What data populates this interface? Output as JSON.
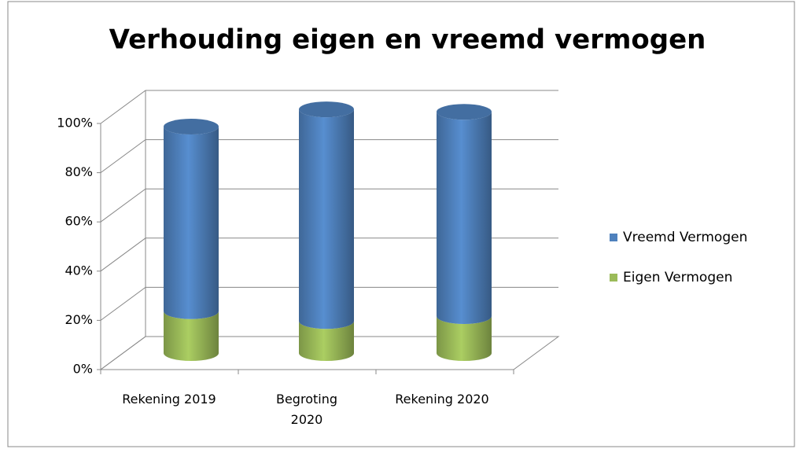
{
  "chart_data": {
    "type": "bar3d_stacked",
    "title": "Verhouding eigen en vreemd vermogen",
    "categories": [
      "Rekening 2019",
      "Begroting 2020",
      "Rekening 2020"
    ],
    "series": [
      {
        "name": "Eigen Vermogen",
        "color": "#9bbb59",
        "values": [
          17,
          13,
          15
        ]
      },
      {
        "name": "Vreemd Vermogen",
        "color": "#4f81bd",
        "values": [
          75,
          86,
          83
        ]
      }
    ],
    "ylim": [
      0,
      100
    ],
    "yticks": [
      {
        "value": 0,
        "label": "0%"
      },
      {
        "value": 20,
        "label": "20%"
      },
      {
        "value": 40,
        "label": "40%"
      },
      {
        "value": 60,
        "label": "60%"
      },
      {
        "value": 80,
        "label": "80%"
      },
      {
        "value": 100,
        "label": "100%"
      }
    ],
    "grid": true,
    "legend": "right"
  }
}
